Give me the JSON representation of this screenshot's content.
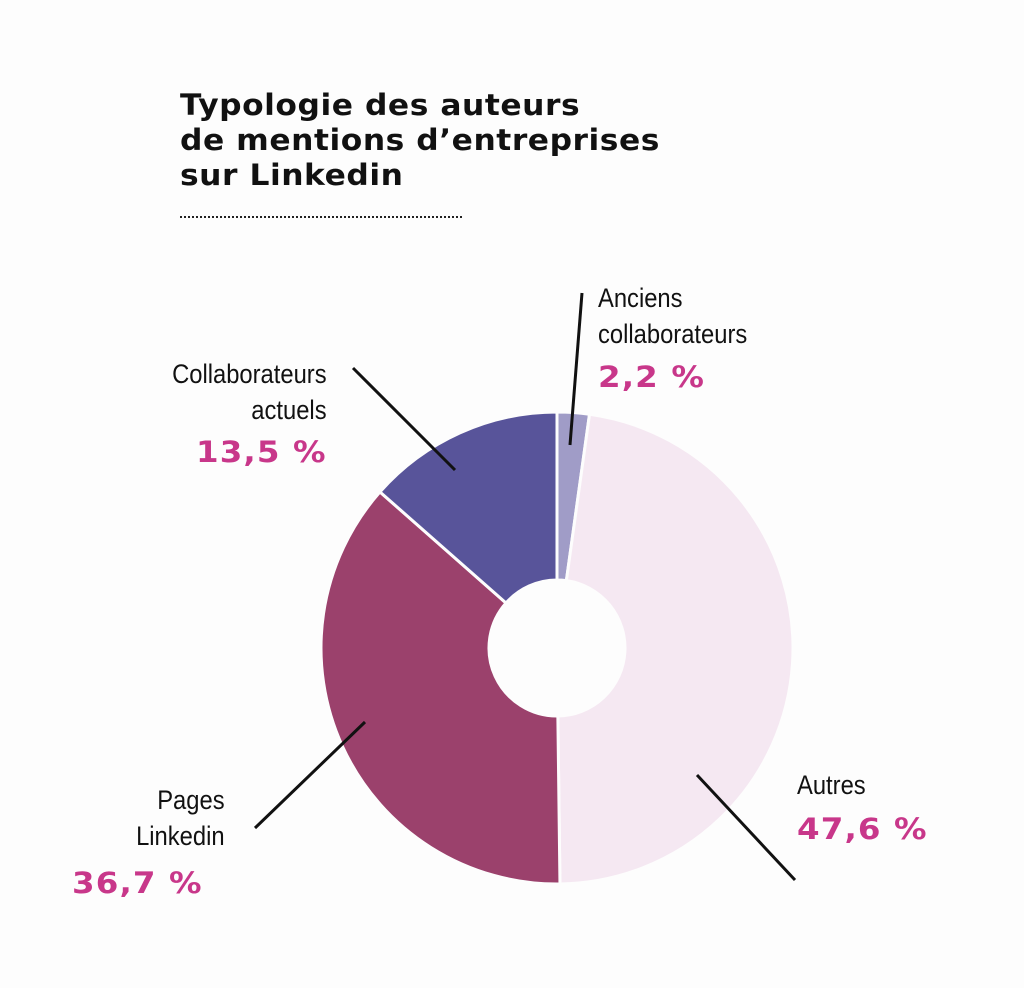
{
  "chart_data": {
    "type": "pie",
    "donut": true,
    "title_lines": [
      "Typologie des auteurs",
      "de mentions d’entreprises",
      "sur Linkedin"
    ],
    "start_angle": "top",
    "direction": "clockwise",
    "slices": [
      {
        "label_lines": [
          "Anciens",
          "collaborateurs"
        ],
        "value": 2.2,
        "value_label": "2,2 %",
        "color": "#a09cc7"
      },
      {
        "label_lines": [
          "Autres"
        ],
        "value": 47.6,
        "value_label": "47,6 %",
        "color": "#f5e8f2"
      },
      {
        "label_lines": [
          "Pages",
          "Linkedin"
        ],
        "value": 36.7,
        "value_label": "36,7 %",
        "color": "#9b416c"
      },
      {
        "label_lines": [
          "Collaborateurs",
          "actuels"
        ],
        "value": 13.5,
        "value_label": "13,5 %",
        "color": "#58549a"
      }
    ],
    "value_label_color": "#c8378a"
  }
}
